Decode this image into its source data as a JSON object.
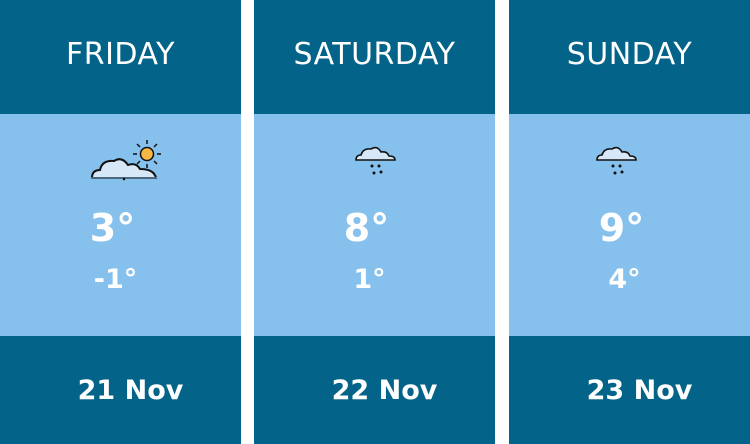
{
  "days": [
    {
      "day": "FRIDAY",
      "icon": "partly-cloudy-sun-icon",
      "high": "3°",
      "low": "-1°",
      "date": "21 Nov"
    },
    {
      "day": "SATURDAY",
      "icon": "cloud-rain-icon",
      "high": "8°",
      "low": "1°",
      "date": "22 Nov"
    },
    {
      "day": "SUNDAY",
      "icon": "cloud-rain-icon",
      "high": "9°",
      "low": "4°",
      "date": "23 Nov"
    }
  ],
  "colors": {
    "header": "#046388",
    "band": "#86c0ec",
    "sun": "#f7b944",
    "cloud": "#d6e8f7"
  }
}
